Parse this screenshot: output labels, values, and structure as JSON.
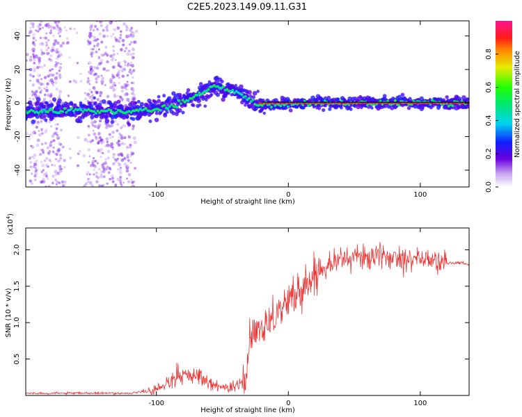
{
  "title": "C2E5.2023.149.09.11.G31",
  "chart_data": [
    {
      "type": "heatmap",
      "xlabel": "Height of straight line (km)",
      "ylabel": "Frequency (Hz)",
      "xlim": [
        -199,
        137
      ],
      "ylim": [
        -50,
        49
      ],
      "xticks": [
        -100,
        0,
        100
      ],
      "xtick_labels": [
        "-100",
        "0",
        "100"
      ],
      "yticks": [
        -40,
        -20,
        0,
        20,
        40
      ],
      "ytick_labels": [
        "-40",
        "-20",
        "0",
        "20",
        "40"
      ],
      "ridge": {
        "x": [
          -199,
          -180,
          -160,
          -140,
          -120,
          -100,
          -90,
          -80,
          -70,
          -60,
          -55,
          -50,
          -45,
          -40,
          -35,
          -30,
          -25,
          -20,
          -10,
          0,
          20,
          40,
          60,
          80,
          100,
          120,
          137
        ],
        "y": [
          -5,
          -5,
          -4,
          -5,
          -5,
          -4,
          -2,
          1,
          4,
          8,
          10,
          9,
          8,
          7,
          5,
          3,
          0,
          -1,
          -1,
          -1,
          0,
          0,
          0,
          0,
          0,
          0,
          0
        ]
      },
      "model_line": {
        "x": [
          -20,
          137
        ],
        "y": [
          0.5,
          0.5
        ]
      },
      "colorbar": {
        "label": "Normalized spectral amplitude",
        "range": [
          0.0,
          1.0
        ],
        "ticks": [
          0.0,
          0.2,
          0.4,
          0.6,
          0.8
        ],
        "tick_labels": [
          "0.0",
          "0.2",
          "0.4",
          "0.6",
          "0.8"
        ]
      }
    },
    {
      "type": "line",
      "xlabel": "Height of straight line (km)",
      "ylabel": "SNR (10 * v/v)",
      "scale_label": "(x10",
      "scale_exp": "4",
      "scale_close": ")",
      "xlim": [
        -199,
        137
      ],
      "ylim": [
        0,
        2.3
      ],
      "xticks": [
        -100,
        0,
        100
      ],
      "xtick_labels": [
        "-100",
        "0",
        "100"
      ],
      "yticks": [
        0.5,
        1.0,
        1.5,
        2.0
      ],
      "ytick_labels": [
        "0.5",
        "1.0",
        "1.5",
        "2.0"
      ],
      "series": [
        {
          "name": "SNR",
          "color": "#ee3333",
          "x": [
            -199,
            -180,
            -160,
            -140,
            -120,
            -110,
            -100,
            -95,
            -90,
            -85,
            -80,
            -75,
            -70,
            -65,
            -60,
            -55,
            -50,
            -45,
            -40,
            -35,
            -32,
            -30,
            -28,
            -26,
            -24,
            -22,
            -20,
            -18,
            -15,
            -10,
            -5,
            0,
            5,
            10,
            15,
            20,
            25,
            30,
            35,
            40,
            50,
            60,
            70,
            80,
            90,
            100,
            110,
            115,
            120,
            125,
            130,
            137
          ],
          "y": [
            0.03,
            0.03,
            0.03,
            0.03,
            0.03,
            0.05,
            0.08,
            0.12,
            0.2,
            0.3,
            0.3,
            0.27,
            0.25,
            0.22,
            0.17,
            0.13,
            0.12,
            0.12,
            0.12,
            0.17,
            0.3,
            0.55,
            0.75,
            0.85,
            0.9,
            0.9,
            0.95,
            1.0,
            1.05,
            1.1,
            1.2,
            1.3,
            1.38,
            1.45,
            1.55,
            1.65,
            1.75,
            1.82,
            1.85,
            1.87,
            1.9,
            1.9,
            1.9,
            1.9,
            1.9,
            1.88,
            1.85,
            1.83,
            1.82,
            1.82,
            1.82,
            1.8
          ]
        }
      ]
    }
  ]
}
